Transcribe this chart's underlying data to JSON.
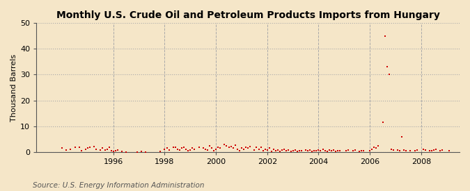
{
  "title": "Monthly U.S. Crude Oil and Petroleum Products Imports from Hungary",
  "ylabel": "Thousand Barrels",
  "source": "Source: U.S. Energy Information Administration",
  "bg_color": "#f5e6c8",
  "plot_bg_color": "#f5e6c8",
  "marker_color": "#cc0000",
  "ylim": [
    0,
    50
  ],
  "yticks": [
    0,
    10,
    20,
    30,
    40,
    50
  ],
  "xlim_start": 1993.0,
  "xlim_end": 2009.5,
  "xticks": [
    1996,
    1998,
    2000,
    2002,
    2004,
    2006,
    2008
  ],
  "data_points": [
    [
      1994.0,
      1.5
    ],
    [
      1994.167,
      0.8
    ],
    [
      1994.333,
      1.2
    ],
    [
      1994.5,
      2.0
    ],
    [
      1994.667,
      1.8
    ],
    [
      1994.75,
      0.5
    ],
    [
      1994.917,
      1.0
    ],
    [
      1995.0,
      1.5
    ],
    [
      1995.083,
      1.8
    ],
    [
      1995.25,
      2.2
    ],
    [
      1995.333,
      1.0
    ],
    [
      1995.5,
      0.8
    ],
    [
      1995.583,
      1.5
    ],
    [
      1995.667,
      0.7
    ],
    [
      1995.75,
      1.1
    ],
    [
      1995.833,
      1.8
    ],
    [
      1995.917,
      0.4
    ],
    [
      1996.0,
      0.3
    ],
    [
      1996.083,
      0.5
    ],
    [
      1996.167,
      0.8
    ],
    [
      1996.333,
      0.2
    ],
    [
      1996.5,
      0.1
    ],
    [
      1996.917,
      0.1
    ],
    [
      1997.083,
      0.3
    ],
    [
      1997.25,
      0.1
    ],
    [
      1997.833,
      0.3
    ],
    [
      1998.0,
      1.0
    ],
    [
      1998.083,
      1.5
    ],
    [
      1998.167,
      0.8
    ],
    [
      1998.333,
      1.8
    ],
    [
      1998.417,
      2.0
    ],
    [
      1998.5,
      1.2
    ],
    [
      1998.583,
      0.9
    ],
    [
      1998.667,
      1.5
    ],
    [
      1998.75,
      2.0
    ],
    [
      1998.833,
      1.2
    ],
    [
      1998.917,
      0.6
    ],
    [
      1999.0,
      0.8
    ],
    [
      1999.083,
      1.5
    ],
    [
      1999.167,
      1.0
    ],
    [
      1999.333,
      2.0
    ],
    [
      1999.5,
      1.5
    ],
    [
      1999.583,
      1.2
    ],
    [
      1999.667,
      0.8
    ],
    [
      1999.75,
      2.5
    ],
    [
      1999.833,
      1.5
    ],
    [
      1999.917,
      0.5
    ],
    [
      2000.0,
      1.2
    ],
    [
      2000.083,
      2.0
    ],
    [
      2000.167,
      1.5
    ],
    [
      2000.333,
      3.0
    ],
    [
      2000.417,
      2.5
    ],
    [
      2000.5,
      1.8
    ],
    [
      2000.583,
      2.2
    ],
    [
      2000.667,
      1.5
    ],
    [
      2000.75,
      2.8
    ],
    [
      2000.833,
      1.0
    ],
    [
      2000.917,
      0.5
    ],
    [
      2001.0,
      1.5
    ],
    [
      2001.083,
      1.0
    ],
    [
      2001.167,
      2.0
    ],
    [
      2001.25,
      1.5
    ],
    [
      2001.333,
      2.2
    ],
    [
      2001.5,
      0.8
    ],
    [
      2001.583,
      1.8
    ],
    [
      2001.667,
      1.2
    ],
    [
      2001.75,
      2.0
    ],
    [
      2001.833,
      0.5
    ],
    [
      2001.917,
      1.0
    ],
    [
      2002.0,
      0.8
    ],
    [
      2002.083,
      1.5
    ],
    [
      2002.167,
      0.3
    ],
    [
      2002.25,
      1.0
    ],
    [
      2002.333,
      0.5
    ],
    [
      2002.417,
      0.8
    ],
    [
      2002.5,
      0.3
    ],
    [
      2002.583,
      0.7
    ],
    [
      2002.667,
      1.2
    ],
    [
      2002.75,
      0.5
    ],
    [
      2002.833,
      0.8
    ],
    [
      2002.917,
      0.3
    ],
    [
      2003.0,
      0.5
    ],
    [
      2003.083,
      0.8
    ],
    [
      2003.167,
      0.3
    ],
    [
      2003.25,
      0.6
    ],
    [
      2003.333,
      0.4
    ],
    [
      2003.5,
      0.7
    ],
    [
      2003.583,
      0.5
    ],
    [
      2003.667,
      0.8
    ],
    [
      2003.75,
      0.3
    ],
    [
      2003.833,
      0.6
    ],
    [
      2003.917,
      0.4
    ],
    [
      2004.0,
      0.8
    ],
    [
      2004.083,
      0.5
    ],
    [
      2004.167,
      1.2
    ],
    [
      2004.25,
      0.6
    ],
    [
      2004.333,
      0.3
    ],
    [
      2004.417,
      0.9
    ],
    [
      2004.5,
      0.5
    ],
    [
      2004.583,
      0.7
    ],
    [
      2004.667,
      0.3
    ],
    [
      2004.75,
      0.6
    ],
    [
      2004.833,
      0.4
    ],
    [
      2005.083,
      0.5
    ],
    [
      2005.167,
      0.8
    ],
    [
      2005.333,
      0.5
    ],
    [
      2005.417,
      0.8
    ],
    [
      2005.583,
      0.3
    ],
    [
      2005.667,
      0.6
    ],
    [
      2005.75,
      0.4
    ],
    [
      2006.0,
      0.6
    ],
    [
      2006.083,
      1.2
    ],
    [
      2006.167,
      2.0
    ],
    [
      2006.25,
      1.5
    ],
    [
      2006.333,
      2.5
    ],
    [
      2006.5,
      11.5
    ],
    [
      2006.583,
      45.0
    ],
    [
      2006.667,
      33.0
    ],
    [
      2006.75,
      30.0
    ],
    [
      2006.833,
      1.0
    ],
    [
      2006.917,
      0.8
    ],
    [
      2007.083,
      0.8
    ],
    [
      2007.167,
      0.5
    ],
    [
      2007.25,
      6.0
    ],
    [
      2007.333,
      0.8
    ],
    [
      2007.417,
      0.5
    ],
    [
      2007.583,
      0.6
    ],
    [
      2007.75,
      0.5
    ],
    [
      2007.833,
      0.8
    ],
    [
      2008.083,
      1.0
    ],
    [
      2008.167,
      0.8
    ],
    [
      2008.333,
      0.6
    ],
    [
      2008.417,
      0.5
    ],
    [
      2008.5,
      0.8
    ],
    [
      2008.583,
      1.2
    ],
    [
      2008.75,
      0.6
    ],
    [
      2008.833,
      0.8
    ],
    [
      2009.083,
      0.5
    ]
  ],
  "title_fontsize": 10,
  "label_fontsize": 8,
  "tick_fontsize": 8,
  "source_fontsize": 7.5
}
